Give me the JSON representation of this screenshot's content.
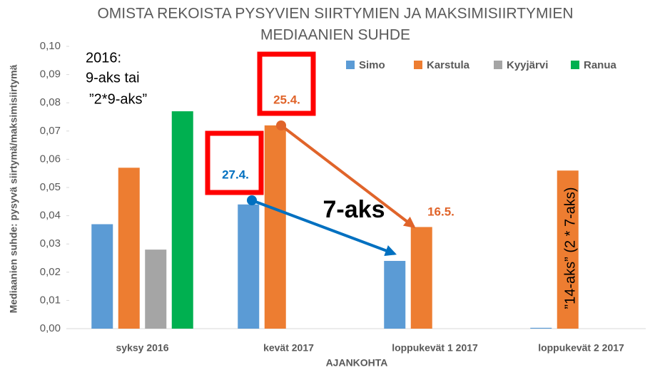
{
  "chart_data": {
    "type": "bar",
    "title": [
      "OMISTA REKOISTA PYSYVIEN SIIRTYMIEN JA MAKSIMISIIRTYMIEN",
      "MEDIAANIEN SUHDE"
    ],
    "x_label": "AJANKOHTA",
    "y_label": "Mediaanien suhde: pysyvä siirtymä/maksimisiirtymä",
    "categories": [
      "syksy 2016",
      "kevät 2017",
      "loppukevät 1 2017",
      "loppukevät 2 2017"
    ],
    "series": [
      {
        "name": "Simo",
        "color": "#5b9bd5",
        "values": [
          0.037,
          0.044,
          0.024,
          0.0003
        ]
      },
      {
        "name": "Karstula",
        "color": "#ed7d31",
        "values": [
          0.057,
          0.072,
          0.036,
          0.056
        ]
      },
      {
        "name": "Kyyjärvi",
        "color": "#a5a5a5",
        "values": [
          0.028,
          null,
          null,
          null
        ]
      },
      {
        "name": "Ranua",
        "color": "#00b050",
        "values": [
          0.077,
          null,
          null,
          null
        ]
      }
    ],
    "ylim": [
      0,
      0.1
    ],
    "yticks": [
      {
        "value": 0,
        "label": "0,00"
      },
      {
        "value": 0.01,
        "label": "0,01"
      },
      {
        "value": 0.02,
        "label": "0,02"
      },
      {
        "value": 0.03,
        "label": "0,03"
      },
      {
        "value": 0.04,
        "label": "0,04"
      },
      {
        "value": 0.05,
        "label": "0,05"
      },
      {
        "value": 0.06,
        "label": "0,06"
      },
      {
        "value": 0.07,
        "label": "0,07"
      },
      {
        "value": 0.08,
        "label": "0,08"
      },
      {
        "value": 0.09,
        "label": "0,09"
      },
      {
        "value": 0.1,
        "label": "0,10"
      }
    ],
    "legend": "top-right",
    "annotations": [
      "2016:",
      "9-aks tai",
      "”2*9-aks”",
      "27.4.",
      "25.4.",
      "16.5.",
      "7-aks",
      "”14-aks” (2 * 7-aks)"
    ]
  }
}
